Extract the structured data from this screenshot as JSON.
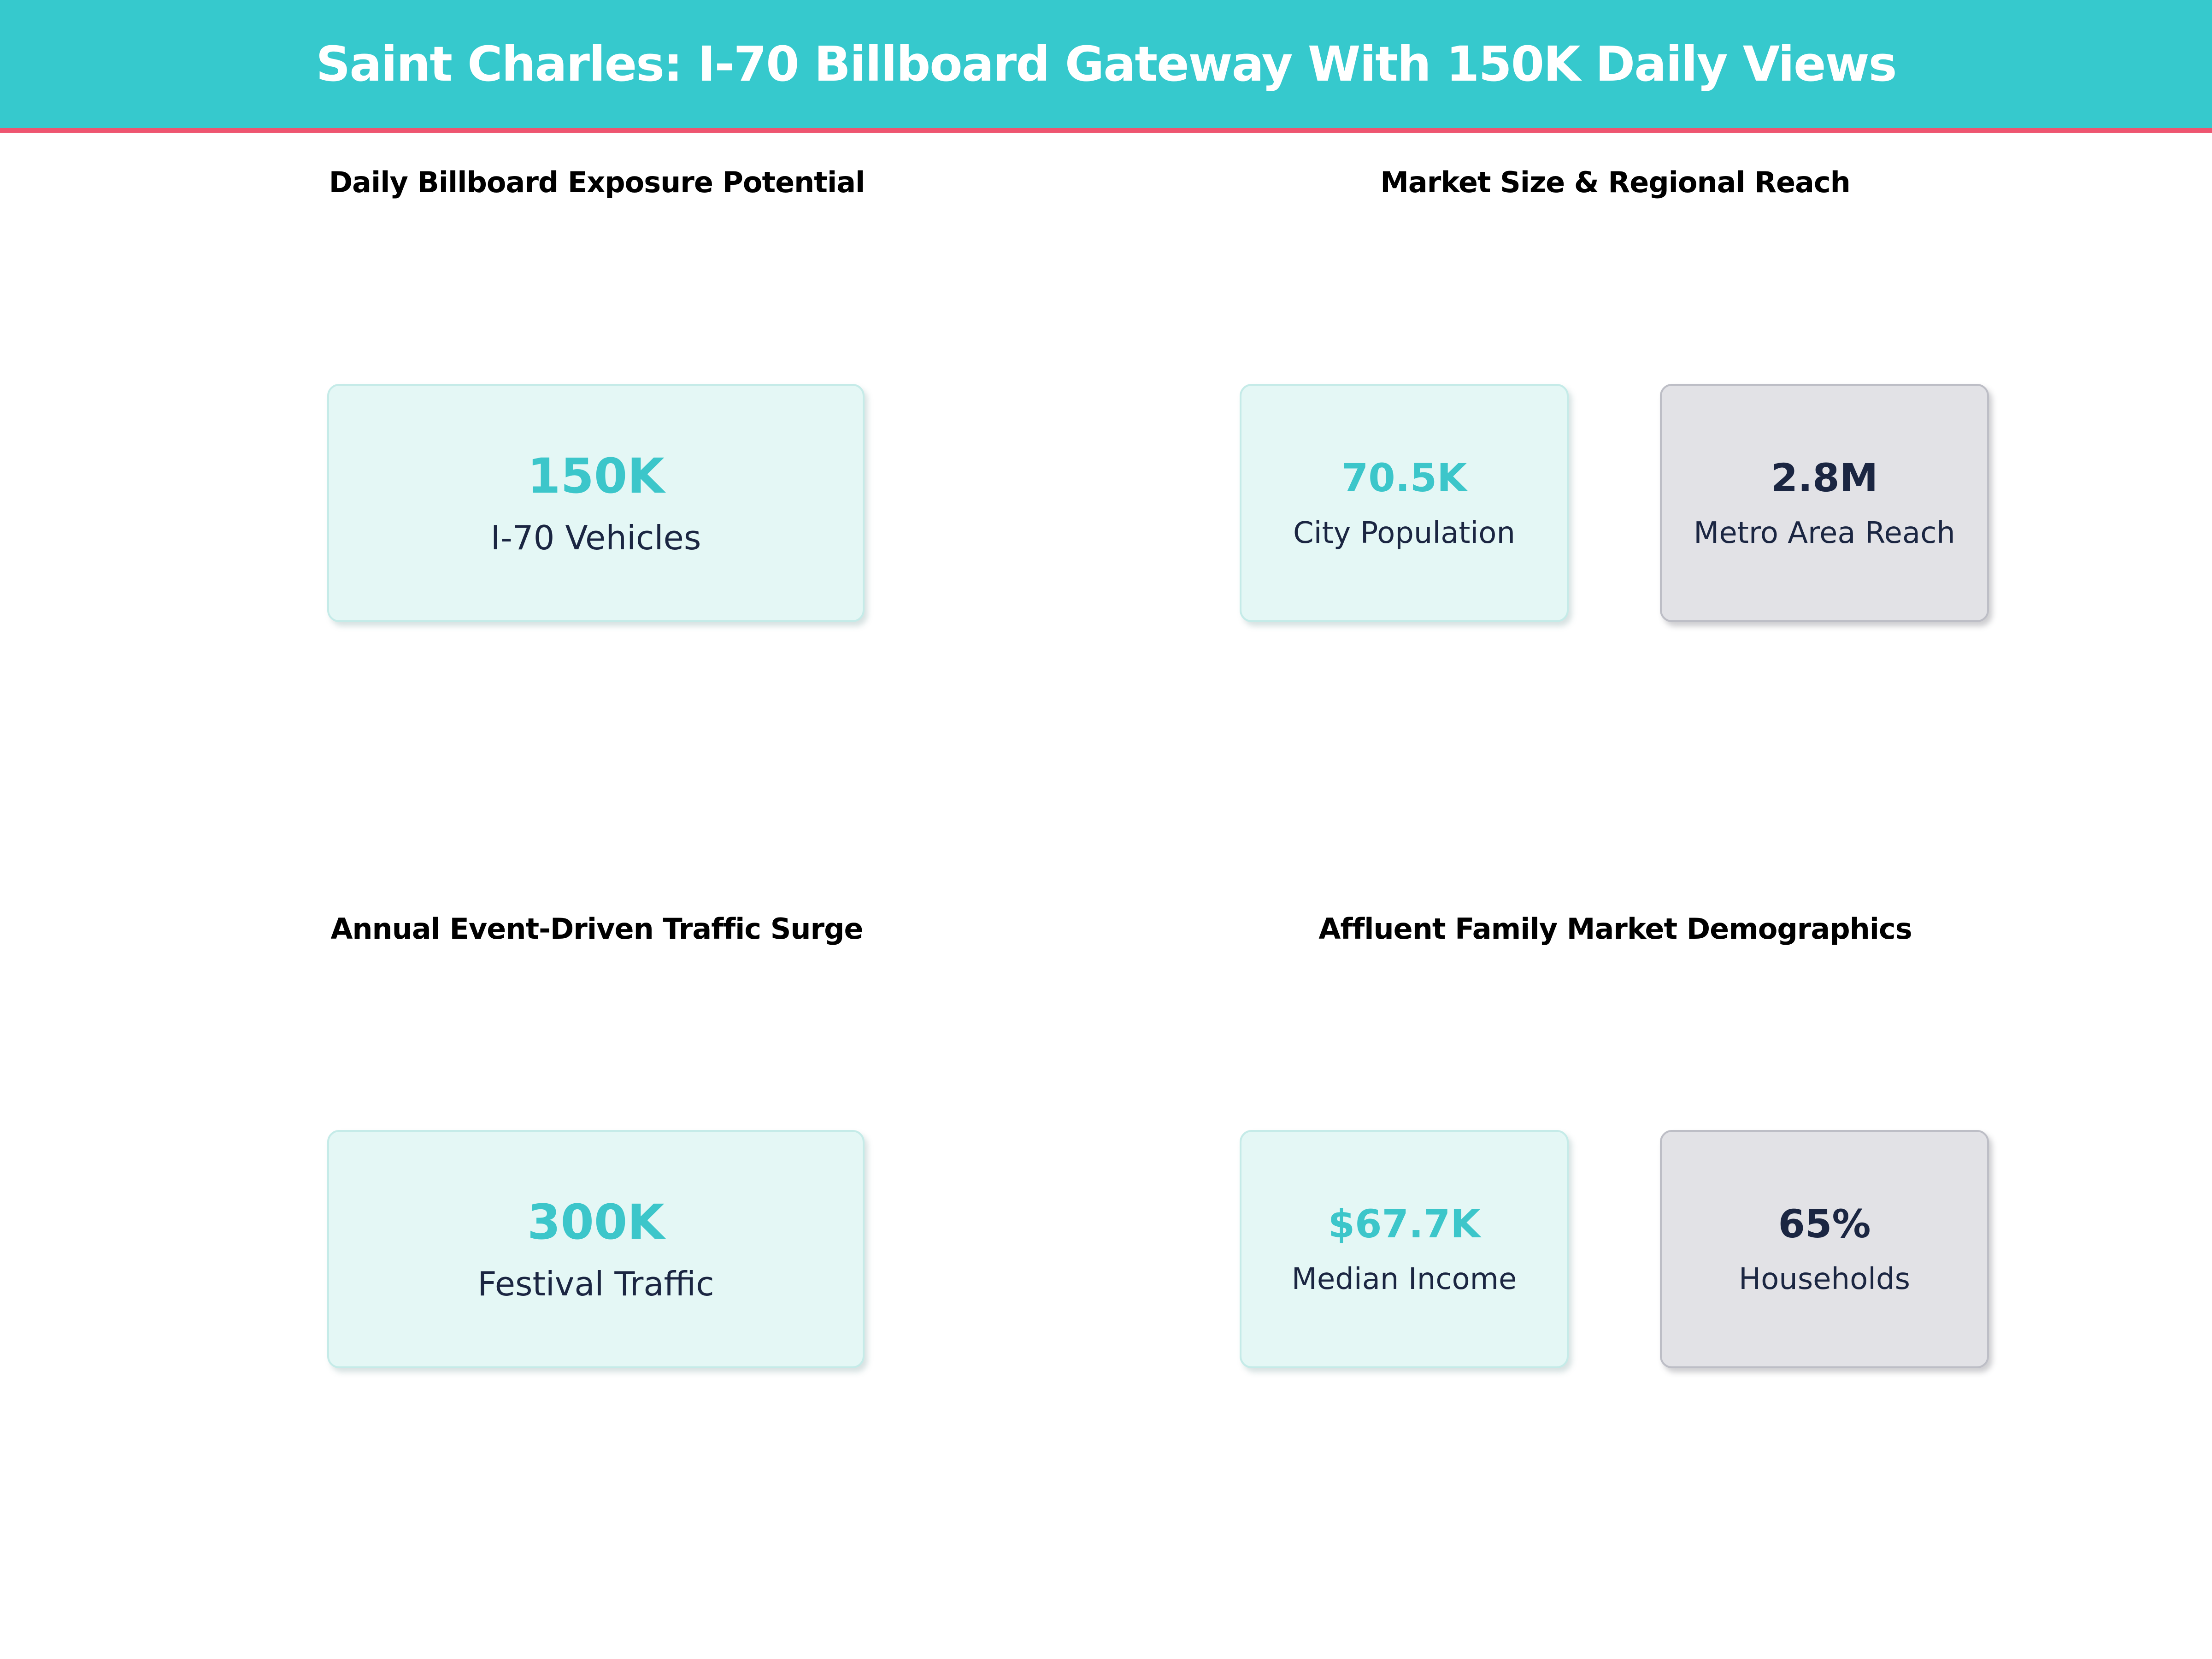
{
  "header": {
    "title": "Saint Charles: I-70 Billboard Gateway With 150K Daily Views",
    "bg_color": "#36c9cd",
    "accent_line_color": "#ee5570",
    "title_color": "#ffffff"
  },
  "colors": {
    "mint_card_bg": "#e4f7f5",
    "mint_card_border": "#c5ebe8",
    "gray_card_bg": "#e2e2e6",
    "gray_card_border": "#bdbec6",
    "teal_value": "#3cc6ca",
    "navy_text": "#1b2642",
    "section_title": "#000000",
    "page_bg": "#ffffff"
  },
  "sections": [
    {
      "title": "Daily Billboard Exposure Potential",
      "cards": [
        {
          "value": "150K",
          "label": "I-70 Vehicles",
          "style": "mint"
        }
      ]
    },
    {
      "title": "Market Size & Regional Reach",
      "cards": [
        {
          "value": "70.5K",
          "label": "City Population",
          "style": "mint"
        },
        {
          "value": "2.8M",
          "label": "Metro Area Reach",
          "style": "gray"
        }
      ]
    },
    {
      "title": "Annual Event-Driven Traffic Surge",
      "cards": [
        {
          "value": "300K",
          "label": "Festival Traffic",
          "style": "mint"
        }
      ]
    },
    {
      "title": "Affluent Family Market Demographics",
      "cards": [
        {
          "value": "$67.7K",
          "label": "Median Income",
          "style": "mint"
        },
        {
          "value": "65%",
          "label": "Households",
          "style": "gray"
        }
      ]
    }
  ],
  "chart_data": {
    "type": "table",
    "title": "Saint Charles: I-70 Billboard Gateway With 150K Daily Views",
    "sections": [
      {
        "title": "Daily Billboard Exposure Potential",
        "metrics": [
          {
            "label": "I-70 Vehicles",
            "value": "150K",
            "numeric": 150000
          }
        ]
      },
      {
        "title": "Market Size & Regional Reach",
        "metrics": [
          {
            "label": "City Population",
            "value": "70.5K",
            "numeric": 70500
          },
          {
            "label": "Metro Area Reach",
            "value": "2.8M",
            "numeric": 2800000
          }
        ]
      },
      {
        "title": "Annual Event-Driven Traffic Surge",
        "metrics": [
          {
            "label": "Festival Traffic",
            "value": "300K",
            "numeric": 300000
          }
        ]
      },
      {
        "title": "Affluent Family Market Demographics",
        "metrics": [
          {
            "label": "Median Income",
            "value": "$67.7K",
            "numeric": 67700
          },
          {
            "label": "Households",
            "value": "65%",
            "numeric": 0.65
          }
        ]
      }
    ]
  }
}
